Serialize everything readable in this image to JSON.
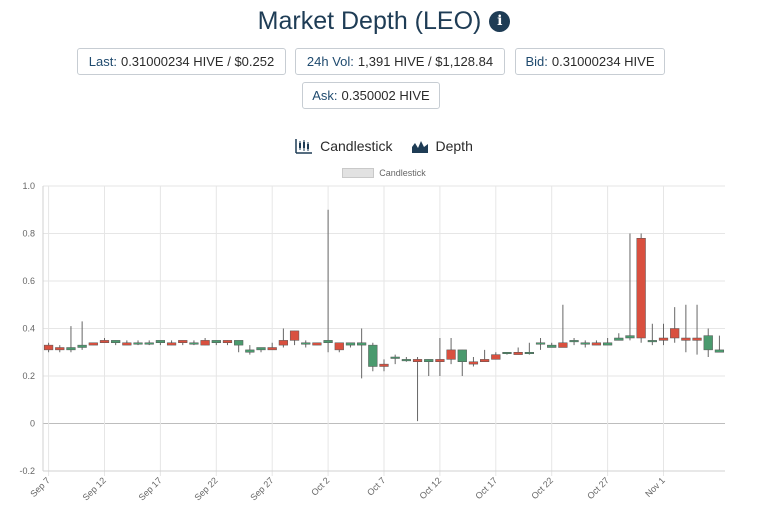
{
  "header": {
    "title": "Market Depth (LEO)",
    "info_icon": "info-icon"
  },
  "stats": {
    "last_label": "Last:",
    "last_value": "0.31000234 HIVE / $0.252",
    "vol_label": "24h Vol:",
    "vol_value": "1,391 HIVE / $1,128.84",
    "bid_label": "Bid:",
    "bid_value": "0.31000234 HIVE",
    "ask_label": "Ask:",
    "ask_value": "0.350002 HIVE"
  },
  "tabs": [
    {
      "label": "Candlestick",
      "icon": "candlestick-chart-icon"
    },
    {
      "label": "Depth",
      "icon": "depth-chart-icon"
    }
  ],
  "colors": {
    "up": "#4a9a6e",
    "down": "#d9503f",
    "wick": "#666666",
    "grid": "#e6e6e6",
    "accent": "#1e3c55"
  },
  "chart_data": {
    "type": "candlestick",
    "legend": [
      "Candlestick"
    ],
    "legend_position": "top",
    "grid": true,
    "ylim": [
      -0.2,
      1.0
    ],
    "yticks": [
      "-0.2",
      "0",
      "0.2",
      "0.4",
      "0.6",
      "0.8",
      "1.0"
    ],
    "xticks": [
      "Sep 7",
      "Sep 12",
      "Sep 17",
      "Sep 22",
      "Sep 27",
      "Oct 2",
      "Oct 7",
      "Oct 12",
      "Oct 17",
      "Oct 22",
      "Oct 27",
      "Nov 1"
    ],
    "x": [
      "Sep 7",
      "Sep 8",
      "Sep 9",
      "Sep 10",
      "Sep 11",
      "Sep 12",
      "Sep 13",
      "Sep 14",
      "Sep 15",
      "Sep 16",
      "Sep 17",
      "Sep 18",
      "Sep 19",
      "Sep 20",
      "Sep 21",
      "Sep 22",
      "Sep 23",
      "Sep 24",
      "Sep 25",
      "Sep 26",
      "Sep 27",
      "Sep 28",
      "Sep 29",
      "Sep 30",
      "Oct 1",
      "Oct 2",
      "Oct 3",
      "Oct 4",
      "Oct 5",
      "Oct 6",
      "Oct 7",
      "Oct 8",
      "Oct 9",
      "Oct 10",
      "Oct 11",
      "Oct 12",
      "Oct 13",
      "Oct 14",
      "Oct 15",
      "Oct 16",
      "Oct 17",
      "Oct 18",
      "Oct 19",
      "Oct 20",
      "Oct 21",
      "Oct 22",
      "Oct 23",
      "Oct 24",
      "Oct 25",
      "Oct 26",
      "Oct 27",
      "Oct 28",
      "Oct 29",
      "Oct 30",
      "Oct 31",
      "Nov 1",
      "Nov 2",
      "Nov 3",
      "Nov 4",
      "Nov 5",
      "Nov 6"
    ],
    "open": [
      0.33,
      0.32,
      0.31,
      0.32,
      0.34,
      0.35,
      0.34,
      0.34,
      0.34,
      0.34,
      0.34,
      0.34,
      0.35,
      0.34,
      0.35,
      0.34,
      0.35,
      0.33,
      0.3,
      0.31,
      0.32,
      0.35,
      0.39,
      0.34,
      0.34,
      0.34,
      0.34,
      0.33,
      0.33,
      0.24,
      0.25,
      0.28,
      0.27,
      0.27,
      0.26,
      0.27,
      0.31,
      0.26,
      0.26,
      0.27,
      0.29,
      0.3,
      0.3,
      0.3,
      0.34,
      0.32,
      0.34,
      0.35,
      0.34,
      0.34,
      0.33,
      0.35,
      0.36,
      0.78,
      0.35,
      0.36,
      0.4,
      0.36,
      0.36,
      0.31,
      0.3
    ],
    "high": [
      0.34,
      0.33,
      0.41,
      0.43,
      0.34,
      0.36,
      0.35,
      0.35,
      0.35,
      0.35,
      0.35,
      0.35,
      0.35,
      0.35,
      0.36,
      0.35,
      0.35,
      0.34,
      0.33,
      0.32,
      0.34,
      0.4,
      0.39,
      0.35,
      0.34,
      0.9,
      0.34,
      0.34,
      0.4,
      0.34,
      0.27,
      0.29,
      0.28,
      0.28,
      0.27,
      0.36,
      0.36,
      0.31,
      0.28,
      0.31,
      0.3,
      0.3,
      0.32,
      0.34,
      0.36,
      0.34,
      0.5,
      0.36,
      0.35,
      0.35,
      0.36,
      0.38,
      0.8,
      0.8,
      0.42,
      0.42,
      0.49,
      0.5,
      0.5,
      0.4,
      0.37
    ],
    "low": [
      0.3,
      0.3,
      0.3,
      0.31,
      0.33,
      0.35,
      0.33,
      0.33,
      0.33,
      0.33,
      0.33,
      0.33,
      0.33,
      0.33,
      0.33,
      0.33,
      0.33,
      0.3,
      0.29,
      0.3,
      0.31,
      0.32,
      0.33,
      0.32,
      0.33,
      0.3,
      0.3,
      0.32,
      0.19,
      0.22,
      0.22,
      0.25,
      0.26,
      0.01,
      0.2,
      0.2,
      0.25,
      0.2,
      0.24,
      0.26,
      0.27,
      0.29,
      0.29,
      0.29,
      0.31,
      0.32,
      0.33,
      0.33,
      0.32,
      0.33,
      0.33,
      0.35,
      0.35,
      0.34,
      0.33,
      0.33,
      0.34,
      0.3,
      0.29,
      0.28,
      0.3
    ],
    "close": [
      0.31,
      0.31,
      0.32,
      0.33,
      0.33,
      0.34,
      0.35,
      0.33,
      0.34,
      0.34,
      0.35,
      0.33,
      0.34,
      0.34,
      0.33,
      0.35,
      0.34,
      0.35,
      0.31,
      0.32,
      0.31,
      0.33,
      0.35,
      0.34,
      0.33,
      0.35,
      0.31,
      0.34,
      0.34,
      0.33,
      0.24,
      0.28,
      0.27,
      0.26,
      0.27,
      0.26,
      0.27,
      0.31,
      0.25,
      0.26,
      0.27,
      0.3,
      0.29,
      0.3,
      0.34,
      0.33,
      0.32,
      0.35,
      0.34,
      0.33,
      0.34,
      0.36,
      0.37,
      0.36,
      0.35,
      0.35,
      0.36,
      0.35,
      0.35,
      0.37,
      0.31
    ]
  }
}
